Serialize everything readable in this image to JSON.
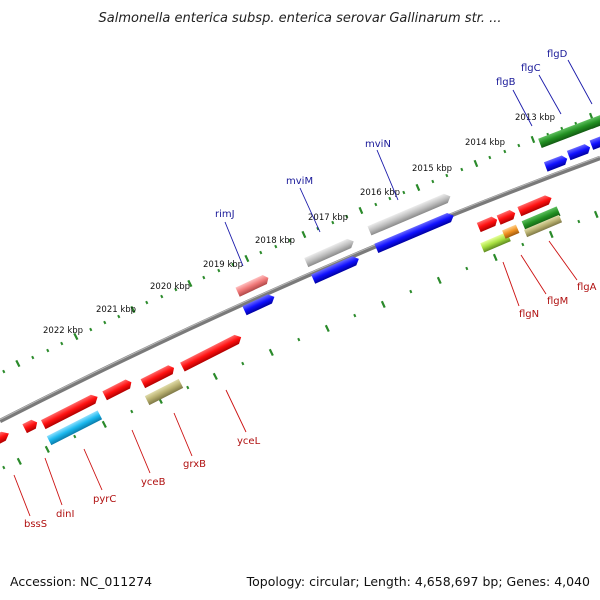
{
  "title": "Salmonella enterica subsp. enterica serovar Gallinarum str. ...",
  "footer": {
    "accession": "Accession: NC_011274",
    "stats": "Topology: circular; Length: 4,658,697 bp; Genes: 4,040"
  },
  "ticks": [
    "2022 kbp",
    "2021 kbp",
    "2020 kbp",
    "2019 kbp",
    "2018 kbp",
    "2017 kbp",
    "2016 kbp",
    "2015 kbp",
    "2014 kbp",
    "2013 kbp"
  ],
  "genes_top": [
    "rimJ",
    "mviM",
    "mviN",
    "flgB",
    "flgC",
    "flgD"
  ],
  "genes_bottom": [
    "bssS",
    "dinI",
    "pyrC",
    "yceB",
    "grxB",
    "yceL",
    "flgN",
    "flgM",
    "flgA"
  ],
  "colors": {
    "backbone": "#888888",
    "cds_red": "#ff1a1a",
    "cds_blue": "#1a1aff",
    "cds_gray": "#bbbbbb",
    "cds_green": "#228b22",
    "cds_cyan": "#19b8ee",
    "cds_khaki": "#b8b070",
    "cds_pink": "#f07878",
    "tick_green": "#2a8a2a"
  }
}
